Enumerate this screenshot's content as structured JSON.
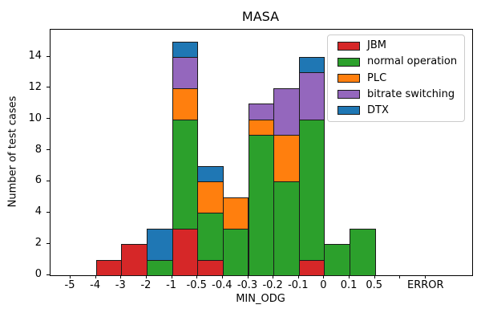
{
  "chart_data": {
    "type": "bar",
    "stacked": true,
    "title": "MASA",
    "xlabel": "MIN_ODG",
    "ylabel": "Number of test cases",
    "bin_style": "histogram-style: each bar spans between two consecutive x-axis ticks",
    "xticklabels": [
      "-5",
      "-4",
      "-3",
      "-2",
      "-1",
      "-0.5",
      "-0.4",
      "-0.3",
      "-0.2",
      "-0.1",
      "0",
      "0.1",
      "0.5",
      "",
      "ERROR"
    ],
    "yticks": [
      0,
      2,
      4,
      6,
      8,
      10,
      12,
      14
    ],
    "ylim": [
      0,
      15.75
    ],
    "grid": false,
    "legend_position": "upper right",
    "series": [
      {
        "name": "JBM",
        "color": "#d62728",
        "values": [
          0,
          1,
          2,
          0,
          3,
          1,
          0,
          0,
          0,
          1,
          0,
          0,
          0,
          0
        ]
      },
      {
        "name": "normal operation",
        "color": "#2ca02c",
        "values": [
          0,
          0,
          0,
          1,
          7,
          3,
          3,
          9,
          6,
          9,
          2,
          3,
          0,
          0
        ]
      },
      {
        "name": "PLC",
        "color": "#ff7f0e",
        "values": [
          0,
          0,
          0,
          0,
          2,
          2,
          2,
          1,
          3,
          0,
          0,
          0,
          0,
          0
        ]
      },
      {
        "name": "bitrate switching",
        "color": "#9467bd",
        "values": [
          0,
          0,
          0,
          0,
          2,
          0,
          0,
          1,
          3,
          3,
          0,
          0,
          0,
          0
        ]
      },
      {
        "name": "DTX",
        "color": "#1f77b4",
        "values": [
          0,
          0,
          0,
          2,
          1,
          1,
          0,
          0,
          0,
          1,
          0,
          0,
          0,
          0
        ]
      }
    ],
    "bin_totals": [
      0,
      1,
      2,
      3,
      15,
      7,
      5,
      11,
      12,
      14,
      2,
      3,
      0,
      0
    ]
  }
}
